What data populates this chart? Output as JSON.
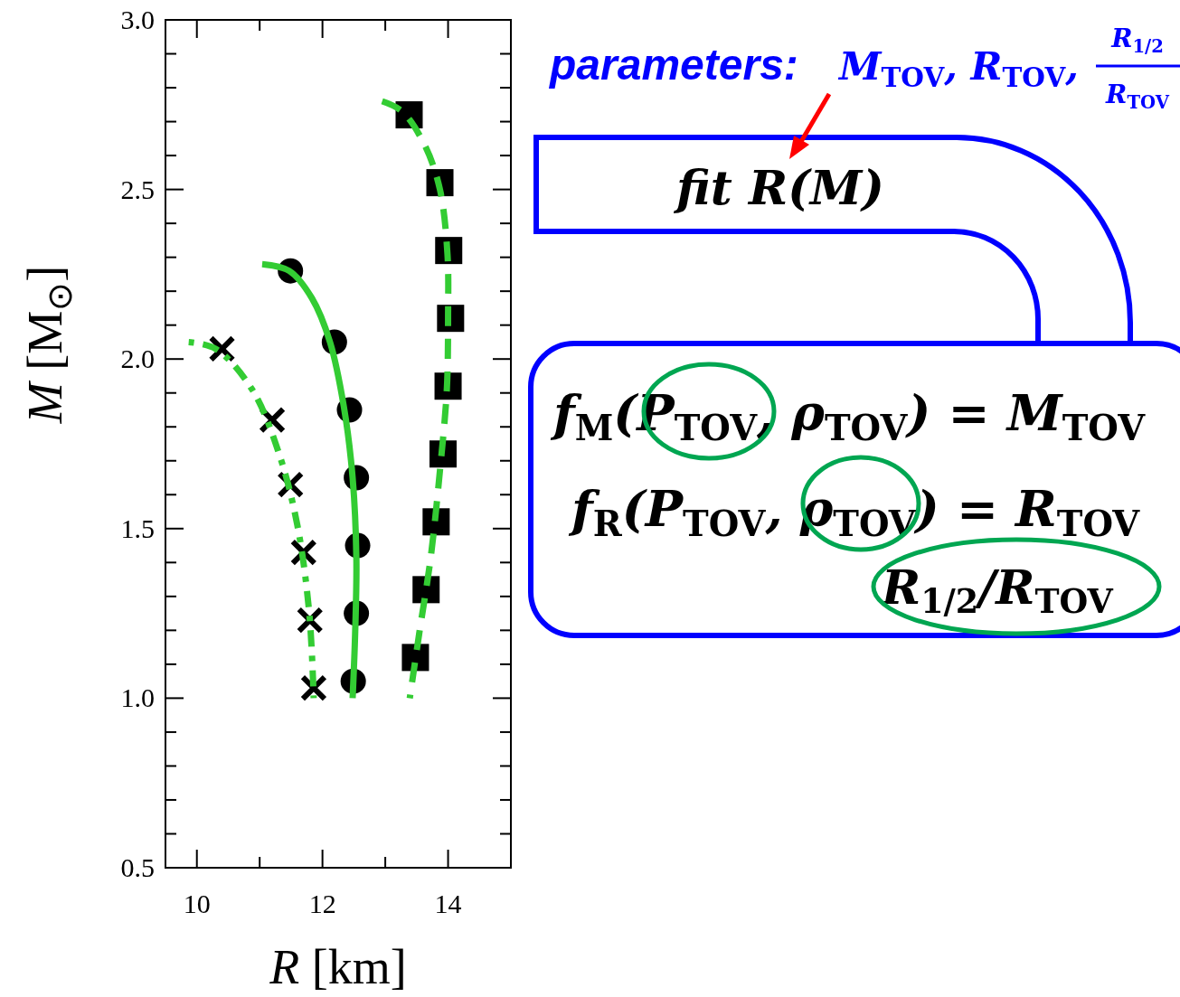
{
  "chart_data": [
    {
      "type": "line",
      "xlabel": "R [km]",
      "ylabel": "M [M$_{⊙}$]",
      "xlim": [
        9.5,
        15
      ],
      "ylim": [
        0.5,
        3.0
      ],
      "xticks": [
        10,
        {
          "value": 11,
          "label": null
        },
        12,
        {
          "value": 13,
          "label": null
        },
        14
      ],
      "yticks": [
        0.5,
        {
          "value": 0.6,
          "label": null
        },
        {
          "value": 0.7,
          "label": null
        },
        {
          "value": 0.8,
          "label": null
        },
        {
          "value": 0.9,
          "label": null
        },
        {
          "value": 1,
          "label": "1.0"
        },
        {
          "value": 1.1,
          "label": null
        },
        {
          "value": 1.2,
          "label": null
        },
        {
          "value": 1.3,
          "label": null
        },
        {
          "value": 1.4,
          "label": null
        },
        1.5,
        {
          "value": 1.6,
          "label": null
        },
        {
          "value": 1.7,
          "label": null
        },
        {
          "value": 1.8,
          "label": null
        },
        {
          "value": 1.9,
          "label": null
        },
        {
          "value": 2,
          "label": "2.0"
        },
        {
          "value": 2.1,
          "label": null
        },
        {
          "value": 2.2,
          "label": null
        },
        {
          "value": 2.3,
          "label": null
        },
        {
          "value": 2.4,
          "label": null
        },
        2.5,
        {
          "value": 2.6,
          "label": null
        },
        {
          "value": 2.7,
          "label": null
        },
        {
          "value": 2.8,
          "label": null
        },
        {
          "value": 2.9,
          "label": null
        },
        {
          "value": 3,
          "label": "3.0"
        }
      ],
      "grid": false,
      "series": [
        {
          "type": "line",
          "color": "#33cc33",
          "line_style": "dotted",
          "x": [
            9.87,
            10.3,
            10.88,
            11.31,
            11.6,
            11.79,
            11.86
          ],
          "values": [
            2.05,
            2.03,
            1.91,
            1.72,
            1.51,
            1.25,
            1.0
          ]
        },
        {
          "type": "line",
          "color": "#33cc33",
          "line_style": "solid",
          "x": [
            11.04,
            11.47,
            11.83,
            12.12,
            12.34,
            12.48,
            12.54,
            12.52,
            12.48
          ],
          "values": [
            2.28,
            2.26,
            2.18,
            2.05,
            1.86,
            1.65,
            1.41,
            1.19,
            1.0
          ]
        },
        {
          "type": "line",
          "color": "#33cc33",
          "line_style": "dashed",
          "x": [
            12.95,
            13.27,
            13.63,
            13.87,
            13.99,
            14.0,
            13.98,
            13.87,
            13.72,
            13.54,
            13.39
          ],
          "values": [
            2.76,
            2.73,
            2.63,
            2.5,
            2.31,
            2.13,
            1.91,
            1.67,
            1.41,
            1.19,
            1.0
          ]
        },
        {
          "type": "scatter",
          "color": "#000000",
          "marker": "cross",
          "x": [
            10.4,
            11.2,
            11.49,
            11.7,
            11.8,
            11.86
          ],
          "values": [
            2.03,
            1.82,
            1.63,
            1.43,
            1.23,
            1.03
          ]
        },
        {
          "type": "scatter",
          "color": "#000000",
          "marker": "circle",
          "x": [
            11.49,
            12.19,
            12.43,
            12.54,
            12.56,
            12.54,
            12.49
          ],
          "values": [
            2.26,
            2.05,
            1.85,
            1.65,
            1.45,
            1.25,
            1.05
          ]
        },
        {
          "type": "scatter",
          "color": "#000000",
          "marker": "square",
          "x": [
            13.38,
            13.87,
            14.01,
            14.04,
            14.0,
            13.92,
            13.81,
            13.65,
            13.48
          ],
          "values": [
            2.72,
            2.52,
            2.32,
            2.12,
            1.92,
            1.72,
            1.52,
            1.32,
            1.12
          ]
        }
      ]
    },
    {
      "type": "other",
      "annotations": [
        "parameters:",
        "M$_{TOV}$, R$_{TOV}$,",
        "R$_{1/2}$",
        "R$_{TOV}$",
        "fit R(M)",
        "f$_{M}$(P$_{TOV}$, ρ$_{TOV}$) = M$_{TOV}$",
        "f$_{R}$(P$_{TOV}$, ρ$_{TOV}$) = R$_{TOV}$",
        "R$_{1/2}$/R$_{TOV}$"
      ]
    }
  ]
}
